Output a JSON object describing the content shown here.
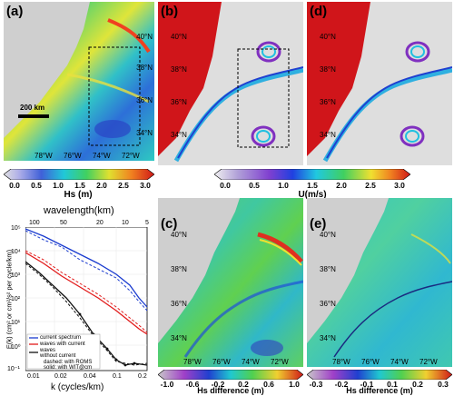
{
  "panels": {
    "a": {
      "label": "(a)"
    },
    "b": {
      "label": "(b)"
    },
    "c": {
      "label": "(c)"
    },
    "d": {
      "label": "(d)"
    },
    "e": {
      "label": "(e)"
    }
  },
  "map_lat_labels": [
    "40°N",
    "38°N",
    "36°N",
    "34°N"
  ],
  "map_lon_labels": [
    "78°W",
    "76°W",
    "74°W",
    "72°W"
  ],
  "scale_bar": "200 km",
  "colorbars": {
    "hs": {
      "title": "Hs (m)",
      "ticks": [
        "0.0",
        "0.5",
        "1.0",
        "1.5",
        "2.0",
        "2.5",
        "3.0"
      ]
    },
    "u": {
      "title": "U(m/s)",
      "ticks": [
        "0.0",
        "0.5",
        "1.0",
        "1.5",
        "2.0",
        "2.5",
        "3.0"
      ]
    },
    "hsdiff_c": {
      "title": "Hs difference (m)",
      "ticks": [
        "-1.0",
        "-0.6",
        "-0.2",
        "0.2",
        "0.6",
        "1.0"
      ]
    },
    "hsdiff_e": {
      "title": "Hs difference (m)",
      "ticks": [
        "-0.3",
        "-0.2",
        "-0.1",
        "0.1",
        "0.2",
        "0.3"
      ]
    }
  },
  "spectrum": {
    "top_axis_label": "wavelength(km)",
    "top_ticks": [
      "100",
      "50",
      "20",
      "10",
      "5"
    ],
    "xlabel": "k (cycles/km)",
    "x_ticks": [
      "0.01",
      "0.02",
      "0.04",
      "0.1",
      "0.2"
    ],
    "ylabel": "E(k)  (cm² or cm²/s² per cycle/km)",
    "y_ticks": [
      "10⁵",
      "10⁴",
      "10³",
      "10²",
      "10¹",
      "10⁰",
      "10⁻¹"
    ],
    "legend": {
      "current": "current spectrum",
      "with": "waves with current",
      "without_1": "waves",
      "without_2": "without current",
      "note_1": "dashed: with ROMS",
      "note_2": "solid: with WIT@cm"
    }
  },
  "colors": {
    "land_red": "#d0151a",
    "land_gray": "#d2d2d2",
    "current_line": "#1b3ccf",
    "with_line": "#e21a1a",
    "without_line": "#111111"
  }
}
